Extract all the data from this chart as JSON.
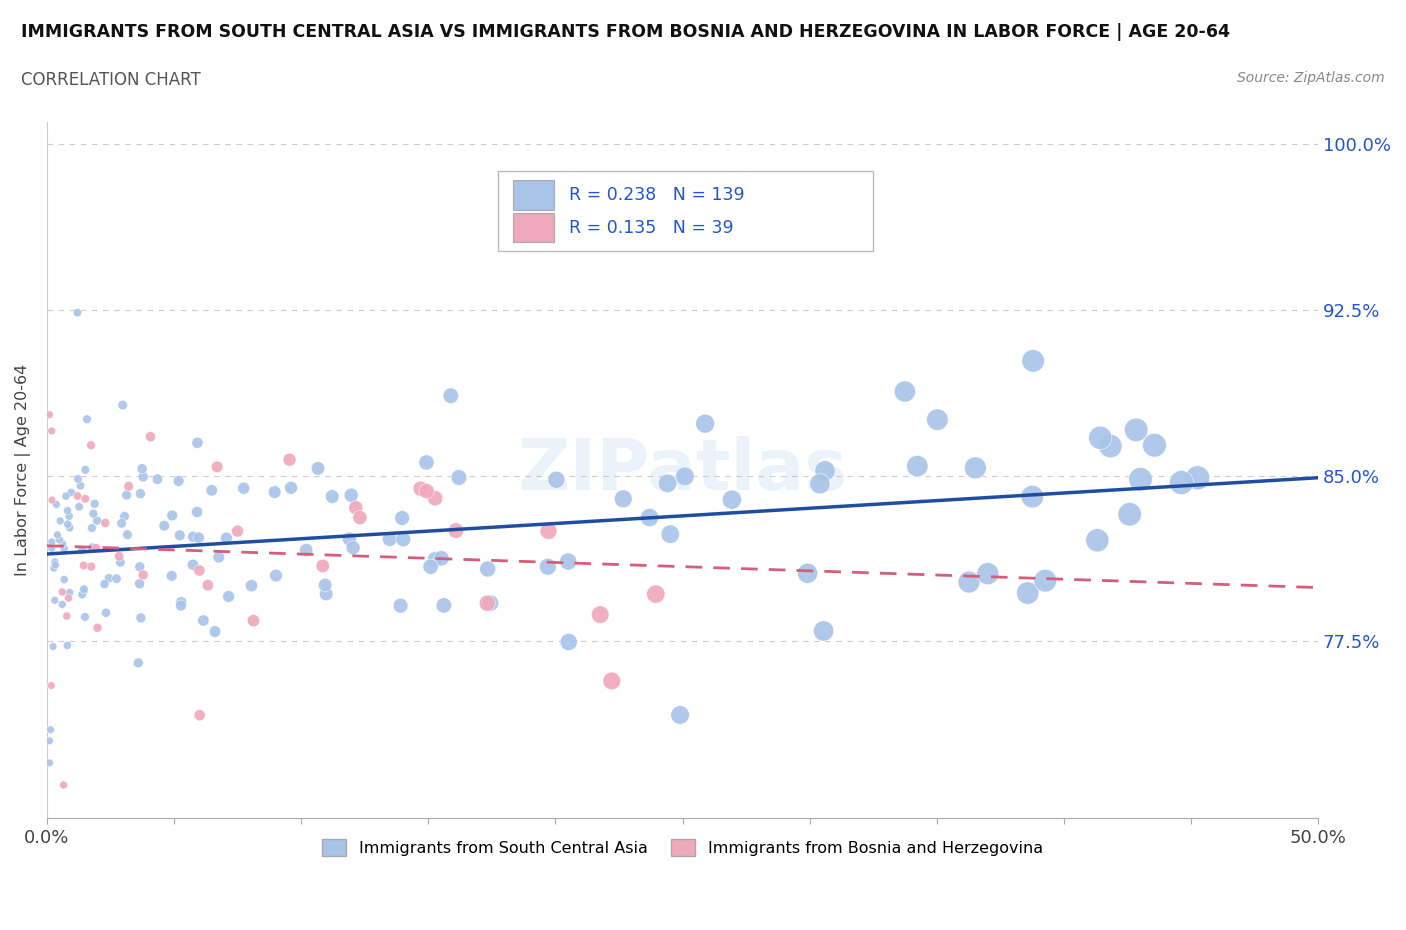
{
  "title": "IMMIGRANTS FROM SOUTH CENTRAL ASIA VS IMMIGRANTS FROM BOSNIA AND HERZEGOVINA IN LABOR FORCE | AGE 20-64",
  "subtitle": "CORRELATION CHART",
  "source": "Source: ZipAtlas.com",
  "ylabel": "In Labor Force | Age 20-64",
  "xlim": [
    0.0,
    0.5
  ],
  "ylim": [
    0.695,
    1.01
  ],
  "xtick_vals": [
    0.0,
    0.05,
    0.1,
    0.15,
    0.2,
    0.25,
    0.3,
    0.35,
    0.4,
    0.45,
    0.5
  ],
  "xtick_labels": [
    "0.0%",
    "",
    "",
    "",
    "",
    "",
    "",
    "",
    "",
    "",
    "50.0%"
  ],
  "ytick_vals": [
    0.775,
    0.85,
    0.925,
    1.0
  ],
  "ytick_labels": [
    "77.5%",
    "85.0%",
    "92.5%",
    "100.0%"
  ],
  "blue_R": 0.238,
  "blue_N": 139,
  "pink_R": 0.135,
  "pink_N": 39,
  "blue_color": "#a8c4e8",
  "pink_color": "#f0a8bc",
  "blue_line_color": "#1f4ea1",
  "pink_line_color": "#d45f7a",
  "legend_label_blue": "Immigrants from South Central Asia",
  "legend_label_pink": "Immigrants from Bosnia and Herzegovina",
  "blue_seed": 42,
  "pink_seed": 7
}
